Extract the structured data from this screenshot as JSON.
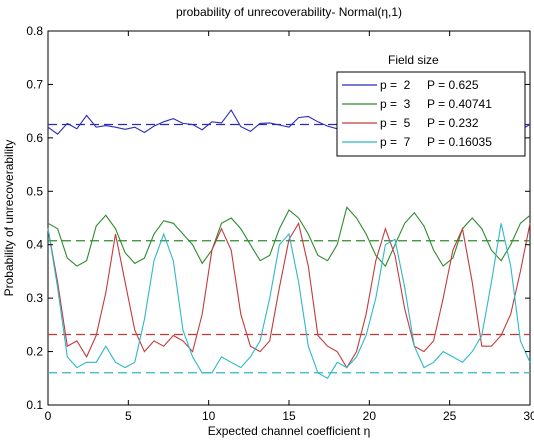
{
  "chart_data": {
    "type": "line",
    "title": "probability of unrecoverability- Normal(η,1)",
    "xlabel": "Expected channel coefficient η",
    "ylabel": "Probability of unrecoverability",
    "xlim": [
      0,
      30
    ],
    "ylim": [
      0.1,
      0.8
    ],
    "xticks": [
      0,
      5,
      10,
      15,
      20,
      25,
      30
    ],
    "yticks": [
      0.1,
      0.2,
      0.3,
      0.4,
      0.5,
      0.6,
      0.7,
      0.8
    ],
    "grid": false,
    "legend_title": "Field size",
    "legend_position": "top-right",
    "x": [
      0,
      0.6,
      1.2,
      1.8,
      2.4,
      3,
      3.6,
      4.2,
      4.8,
      5.4,
      6,
      6.6,
      7.2,
      7.8,
      8.4,
      9,
      9.6,
      10.2,
      10.8,
      11.4,
      12,
      12.6,
      13.2,
      13.8,
      14.4,
      15,
      15.6,
      16.2,
      16.8,
      17.4,
      18,
      18.6,
      19.2,
      19.8,
      20.4,
      21,
      21.6,
      22.2,
      22.8,
      23.4,
      24,
      24.6,
      25.2,
      25.8,
      26.4,
      27,
      27.6,
      28.2,
      28.8,
      29.4,
      30
    ],
    "series": [
      {
        "name": "p =  2     P = 0.625",
        "color": "#2b2bb8",
        "reference": 0.625,
        "values": [
          0.62,
          0.607,
          0.627,
          0.617,
          0.642,
          0.62,
          0.623,
          0.62,
          0.616,
          0.62,
          0.61,
          0.622,
          0.63,
          0.636,
          0.627,
          0.625,
          0.615,
          0.63,
          0.628,
          0.652,
          0.621,
          0.612,
          0.627,
          0.628,
          0.624,
          0.62,
          0.638,
          0.64,
          0.63,
          0.622,
          0.617,
          0.622,
          0.637,
          0.629,
          0.618,
          0.625,
          0.628,
          0.642,
          0.623,
          0.62,
          0.625,
          0.628,
          0.62,
          0.63,
          0.642,
          0.625,
          0.622,
          0.632,
          0.625,
          0.615,
          0.625
        ]
      },
      {
        "name": "p =  3     P = 0.40741",
        "color": "#2e8b2e",
        "reference": 0.40741,
        "values": [
          0.44,
          0.43,
          0.375,
          0.36,
          0.37,
          0.435,
          0.455,
          0.43,
          0.385,
          0.365,
          0.375,
          0.42,
          0.445,
          0.44,
          0.42,
          0.4,
          0.365,
          0.39,
          0.44,
          0.45,
          0.43,
          0.4,
          0.37,
          0.38,
          0.43,
          0.465,
          0.45,
          0.42,
          0.38,
          0.37,
          0.4,
          0.47,
          0.45,
          0.42,
          0.38,
          0.36,
          0.4,
          0.44,
          0.46,
          0.435,
          0.39,
          0.36,
          0.375,
          0.43,
          0.45,
          0.43,
          0.39,
          0.37,
          0.4,
          0.44,
          0.455
        ]
      },
      {
        "name": "p =  5     P = 0.232",
        "color": "#c43a3a",
        "reference": 0.232,
        "values": [
          0.43,
          0.33,
          0.21,
          0.22,
          0.19,
          0.23,
          0.31,
          0.42,
          0.33,
          0.24,
          0.2,
          0.22,
          0.21,
          0.23,
          0.22,
          0.2,
          0.27,
          0.39,
          0.43,
          0.39,
          0.27,
          0.21,
          0.2,
          0.22,
          0.32,
          0.41,
          0.44,
          0.36,
          0.23,
          0.21,
          0.2,
          0.17,
          0.2,
          0.27,
          0.37,
          0.43,
          0.38,
          0.28,
          0.21,
          0.2,
          0.22,
          0.3,
          0.39,
          0.43,
          0.33,
          0.21,
          0.21,
          0.23,
          0.27,
          0.35,
          0.44
        ]
      },
      {
        "name": "p =  7     P = 0.16035",
        "color": "#2fb8c8",
        "reference": 0.16035,
        "values": [
          0.43,
          0.32,
          0.19,
          0.17,
          0.18,
          0.18,
          0.21,
          0.18,
          0.17,
          0.18,
          0.26,
          0.37,
          0.42,
          0.37,
          0.24,
          0.19,
          0.16,
          0.16,
          0.19,
          0.18,
          0.17,
          0.19,
          0.22,
          0.3,
          0.4,
          0.42,
          0.33,
          0.21,
          0.16,
          0.15,
          0.18,
          0.17,
          0.19,
          0.23,
          0.3,
          0.4,
          0.41,
          0.32,
          0.21,
          0.17,
          0.18,
          0.2,
          0.19,
          0.18,
          0.2,
          0.23,
          0.33,
          0.44,
          0.36,
          0.22,
          0.18
        ]
      }
    ]
  }
}
